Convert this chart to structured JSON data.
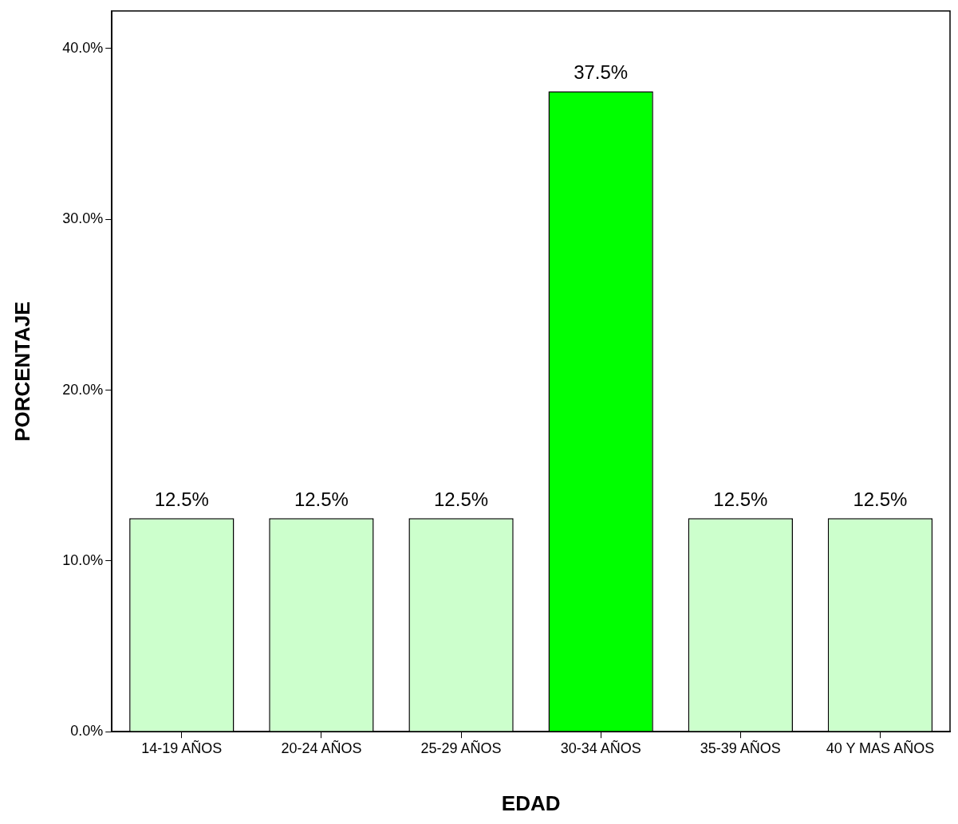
{
  "chart_data": {
    "type": "bar",
    "xlabel": "EDAD",
    "ylabel": "PORCENTAJE",
    "categories": [
      "14-19 AÑOS",
      "20-24 AÑOS",
      "25-29 AÑOS",
      "30-34 AÑOS",
      "35-39 AÑOS",
      "40 Y MAS AÑOS"
    ],
    "values": [
      12.5,
      12.5,
      12.5,
      37.5,
      12.5,
      12.5
    ],
    "colors": [
      "#ccffcc",
      "#ccffcc",
      "#ccffcc",
      "#00ff00",
      "#ccffcc",
      "#ccffcc"
    ],
    "value_labels": [
      "12.5%",
      "12.5%",
      "12.5%",
      "37.5%",
      "12.5%",
      "12.5%"
    ],
    "ylim": [
      0,
      42.2
    ],
    "yticks": [
      {
        "value": 0,
        "label": "0.0%"
      },
      {
        "value": 10,
        "label": "10.0%"
      },
      {
        "value": 20,
        "label": "20.0%"
      },
      {
        "value": 30,
        "label": "30.0%"
      },
      {
        "value": 40,
        "label": "40.0%"
      }
    ],
    "grid": false,
    "legend": false
  }
}
